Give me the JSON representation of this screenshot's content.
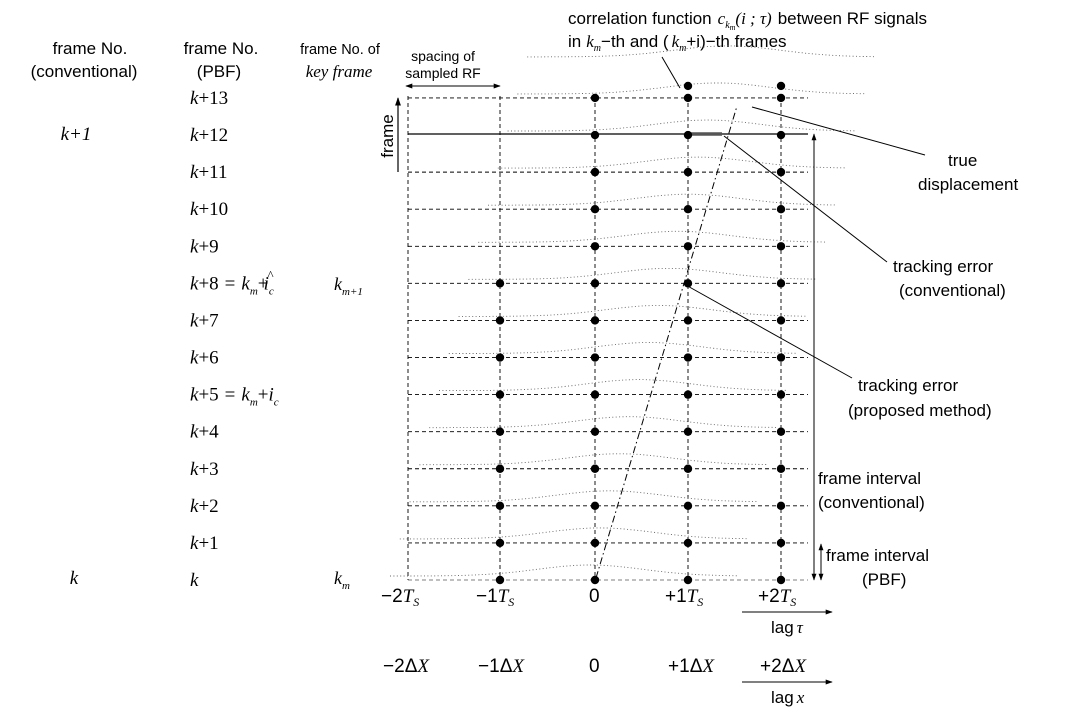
{
  "headers": {
    "conventional_line1": "frame No.",
    "conventional_line2": "(conventional)",
    "pbf_line1": "frame No.",
    "pbf_line2": "(PBF)",
    "key_line1": "frame No. of",
    "key_line2": "key frame",
    "spacing_line1": "spacing of",
    "spacing_line2": "sampled RF"
  },
  "conventional_labels": {
    "k_plus_1": "k+1",
    "k": "k"
  },
  "pbf_frames": [
    "k",
    "k+1",
    "k+2",
    "k+3",
    "k+4",
    "k+5 = km+ ic",
    "k+6",
    "k+7",
    "k+8 = km+ îc",
    "k+9",
    "k+10",
    "k+11",
    "k+12",
    "k+13"
  ],
  "pbf_text": {
    "k": "k",
    "plus": "+",
    "n1": "1",
    "n2": "2",
    "n3": "3",
    "n4": "4",
    "n5": "5",
    "n6": "6",
    "n7": "7",
    "n8": "8",
    "n9": "9",
    "n10": "10",
    "n11": "11",
    "n12": "12",
    "n13": "13",
    "eq": "=",
    "km_base": "k",
    "km_sub": "m",
    "i": "i",
    "c_sub": "c",
    "hat": "^"
  },
  "key_frames": {
    "km_base": "k",
    "km_sub": "m",
    "km1_sub": "m+1"
  },
  "frame_axis_label": "frame",
  "title": {
    "line1_prefix": "correlation function",
    "c": "c",
    "c_sub_k": "k",
    "c_sub_m": "m",
    "args": "(i ; τ)",
    "line1_suffix": "between RF signals",
    "line2_a": "in",
    "km_base": "k",
    "km_sub": "m",
    "line2_b": "−th and (",
    "line2_c": "+i)−th frames"
  },
  "annotations": {
    "true_line1": "true",
    "true_line2": "displacement",
    "conv_line1": "tracking error",
    "conv_line2": "(conventional)",
    "prop_line1": "tracking error",
    "prop_line2": "(proposed method)",
    "fic_line1": "frame interval",
    "fic_line2": "(conventional)",
    "fip_line1": "frame interval",
    "fip_line2": "(PBF)"
  },
  "tau_axis": {
    "sign_neg": "−",
    "sign_pos": "+",
    "n1": "1",
    "n2": "2",
    "T": "T",
    "sub": "S",
    "zero": "0",
    "label_word": "lag",
    "label_sym": "τ"
  },
  "x_axis": {
    "sign_neg": "−",
    "sign_pos": "+",
    "n1": "1",
    "n2": "2",
    "delta": "Δ",
    "X": "X",
    "zero": "0",
    "label_word": "lag",
    "label_sym": "x"
  },
  "dots": {
    "lag_minus1": [
      0,
      8
    ],
    "lag_0": [
      0,
      13
    ],
    "lag_plus1": [
      0,
      14
    ],
    "lag_plus2": [
      0,
      14
    ]
  }
}
